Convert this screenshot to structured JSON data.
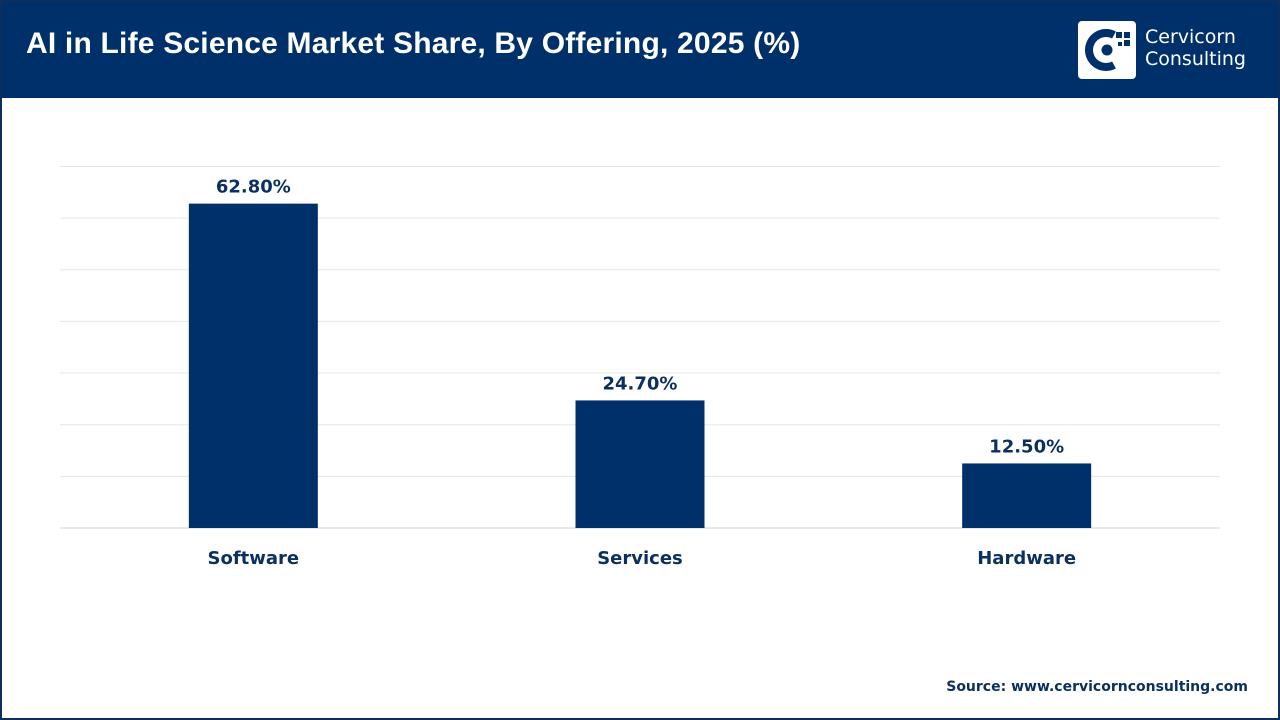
{
  "header": {
    "title": "AI in Life Science Market Share, By Offering, 2025 (%)",
    "background_color": "#003069"
  },
  "logo": {
    "name_line1": "Cervicorn",
    "name_line2": "Consulting",
    "icon": "cervicorn-logo-icon"
  },
  "chart_data": {
    "type": "bar",
    "title": "AI in Life Science Market Share, By Offering, 2025 (%)",
    "categories": [
      "Software",
      "Services",
      "Hardware"
    ],
    "values": [
      62.8,
      24.7,
      12.5
    ],
    "value_labels": [
      "62.80%",
      "24.70%",
      "12.50%"
    ],
    "xlabel": "",
    "ylabel": "",
    "ylim": [
      0,
      70
    ],
    "grid": true,
    "legend": "none",
    "bar_color": "#003069"
  },
  "footer": {
    "source": "Source: www.cervicornconsulting.com"
  }
}
